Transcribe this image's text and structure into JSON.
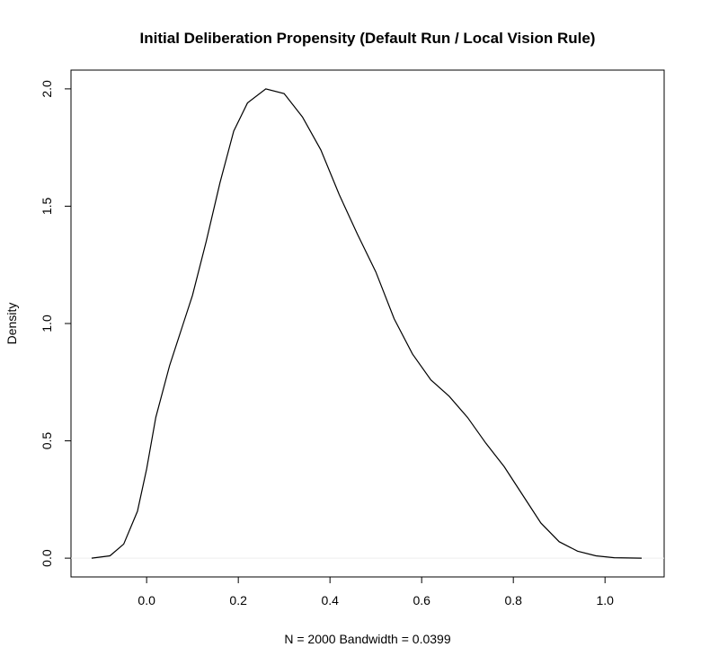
{
  "chart_data": {
    "type": "line",
    "title": "Initial Deliberation Propensity (Default Run / Local Vision Rule)",
    "x_label": "N = 2000   Bandwidth = 0.0399",
    "y_label": "Density",
    "x": [
      -0.12,
      -0.08,
      -0.05,
      -0.02,
      0.0,
      0.02,
      0.05,
      0.08,
      0.1,
      0.13,
      0.16,
      0.19,
      0.22,
      0.26,
      0.3,
      0.34,
      0.38,
      0.42,
      0.46,
      0.5,
      0.54,
      0.58,
      0.62,
      0.66,
      0.7,
      0.74,
      0.78,
      0.82,
      0.86,
      0.9,
      0.94,
      0.98,
      1.02,
      1.08
    ],
    "series": [
      {
        "color": "#000000",
        "values": [
          0.0,
          0.01,
          0.06,
          0.2,
          0.38,
          0.6,
          0.82,
          1.0,
          1.12,
          1.35,
          1.6,
          1.82,
          1.94,
          2.0,
          1.98,
          1.88,
          1.74,
          1.55,
          1.38,
          1.22,
          1.02,
          0.87,
          0.76,
          0.69,
          0.6,
          0.49,
          0.39,
          0.27,
          0.15,
          0.07,
          0.03,
          0.01,
          0.002,
          0.0
        ]
      }
    ],
    "xlim": [
      -0.165,
      1.129
    ],
    "ylim": [
      -0.08,
      2.08
    ],
    "xticks": [
      {
        "value": 0,
        "label": "0.0"
      },
      0.2,
      0.4,
      0.6,
      0.8,
      {
        "value": 1,
        "label": "1.0"
      }
    ],
    "yticks": [
      {
        "value": 0,
        "label": "0.0"
      },
      0.5,
      {
        "value": 1,
        "label": "1.0"
      },
      1.5,
      {
        "value": 2,
        "label": "2.0"
      }
    ],
    "zero_line": true
  }
}
